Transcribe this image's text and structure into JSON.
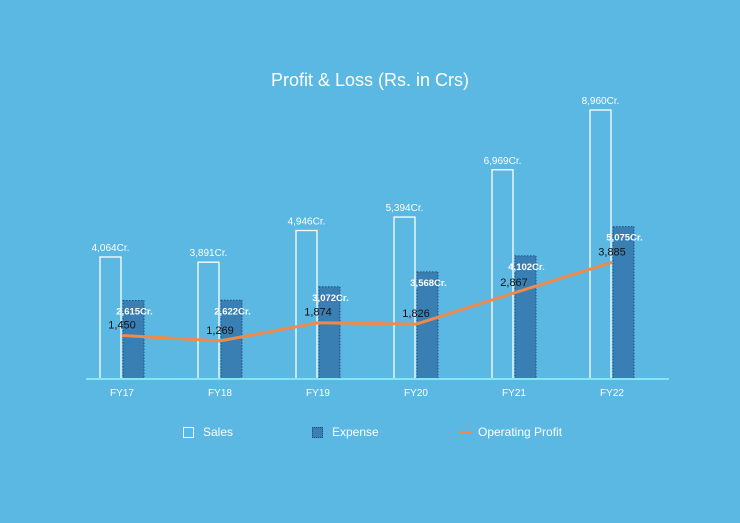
{
  "chart_data": {
    "type": "bar",
    "title": "Profit & Loss (Rs. in Crs)",
    "categories": [
      "FY17",
      "FY18",
      "FY19",
      "FY20",
      "FY21",
      "FY22"
    ],
    "series": [
      {
        "name": "Sales",
        "kind": "bar",
        "values": [
          4064,
          3891,
          4946,
          5394,
          6969,
          8960
        ],
        "labels": [
          "4,064Cr.",
          "3,891Cr.",
          "4,946Cr.",
          "5,394Cr.",
          "6,969Cr.",
          "8,960Cr."
        ],
        "color": "#ffffff"
      },
      {
        "name": "Expense",
        "kind": "bar",
        "values": [
          2615,
          2622,
          3072,
          3568,
          4102,
          5075
        ],
        "labels": [
          "2,615Cr.",
          "2,622Cr.",
          "3,072Cr.",
          "3,568Cr.",
          "4,102Cr.",
          "5,075Cr."
        ],
        "color": "#3a7fb3"
      },
      {
        "name": "Operating Profit",
        "kind": "line",
        "values": [
          1450,
          1269,
          1874,
          1826,
          2867,
          3885
        ],
        "labels": [
          "1,450",
          "1,269",
          "1,874",
          "1,826",
          "2,867",
          "3,885"
        ],
        "color": "#f0894a"
      }
    ],
    "ylim": [
      0,
      9000
    ],
    "grid": false,
    "legend": "bottom",
    "colors": {
      "background": "#5ab8e3",
      "baseline": "#7ee8f5"
    }
  },
  "legend": {
    "sales_label": "Sales",
    "expense_label": "Expense",
    "profit_label": "Operating Profit"
  }
}
